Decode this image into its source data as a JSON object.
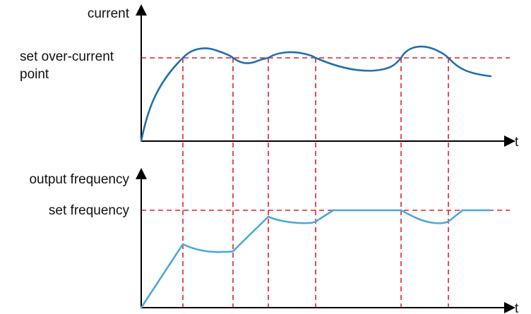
{
  "labels": {
    "current_axis": "current",
    "time_axis_top": "t",
    "overcurrent_line1": "set over-current",
    "overcurrent_line2": "point",
    "frequency_axis": "output frequency",
    "time_axis_bottom": "t",
    "set_frequency": "set frequency"
  },
  "colors": {
    "current_curve": "#1f6fb0",
    "frequency_curve": "#4aa8db",
    "reference_lines": "#e0202a",
    "axes": "#000000"
  }
}
